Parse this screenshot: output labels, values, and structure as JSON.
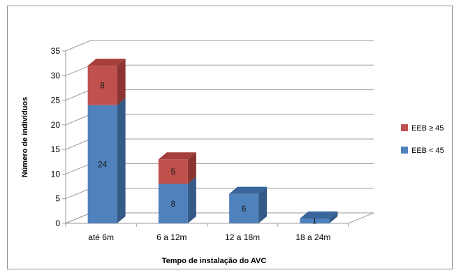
{
  "chart_data": {
    "type": "bar",
    "stacked": true,
    "three_d": true,
    "title": "",
    "xlabel": "Tempo de instalação do AVC",
    "ylabel": "Número de indivíduos",
    "ylim": [
      0,
      35
    ],
    "yticks": [
      "0",
      "5",
      "10",
      "15",
      "20",
      "25",
      "30",
      "35"
    ],
    "grid": true,
    "legend_position": "right",
    "categories": [
      "até 6m",
      "6 a 12m",
      "12 a 18m",
      "18 a 24m"
    ],
    "series": [
      {
        "name": "EEB < 45",
        "color": "#4f81bd",
        "side_color": "#345a88",
        "top_color": "#3a669c",
        "values": [
          24,
          8,
          6,
          1
        ],
        "labels": [
          "24",
          "8",
          "6",
          "1"
        ]
      },
      {
        "name": "EEB ≥ 45",
        "color": "#c0504d",
        "side_color": "#8b3431",
        "top_color": "#a43f3c",
        "values": [
          8,
          5,
          0,
          0
        ],
        "labels": [
          "8",
          "5",
          "",
          ""
        ]
      }
    ],
    "legend_order": [
      1,
      0
    ]
  }
}
